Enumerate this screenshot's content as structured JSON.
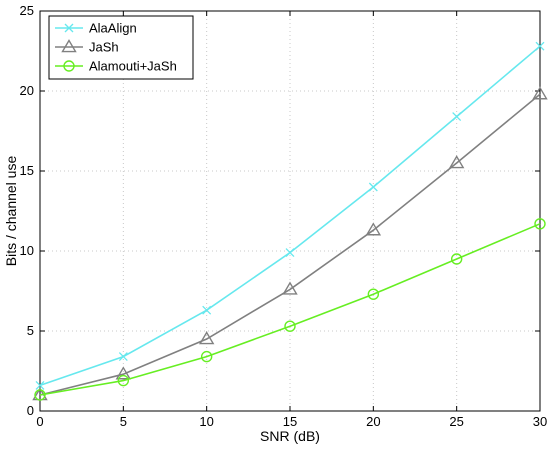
{
  "chart_data": {
    "type": "line",
    "title": "",
    "xlabel": "SNR (dB)",
    "ylabel": "Bits / channel use",
    "xlim": [
      0,
      30
    ],
    "ylim": [
      0,
      25
    ],
    "xticks": [
      0,
      5,
      10,
      15,
      20,
      25,
      30
    ],
    "yticks": [
      0,
      5,
      10,
      15,
      20,
      25
    ],
    "grid": true,
    "legend_position": "top-left",
    "x": [
      0,
      5,
      10,
      15,
      20,
      25,
      30
    ],
    "series": [
      {
        "name": "AlaAlign",
        "color": "#66e8ee",
        "marker": "x",
        "values": [
          1.6,
          3.4,
          6.3,
          9.9,
          14.0,
          18.4,
          22.8
        ]
      },
      {
        "name": "JaSh",
        "color": "#808080",
        "marker": "triangle",
        "values": [
          1.0,
          2.3,
          4.5,
          7.6,
          11.3,
          15.5,
          19.8
        ]
      },
      {
        "name": "Alamouti+JaSh",
        "color": "#66ee22",
        "marker": "circle",
        "values": [
          1.0,
          1.9,
          3.4,
          5.3,
          7.3,
          9.5,
          11.7
        ]
      }
    ]
  }
}
